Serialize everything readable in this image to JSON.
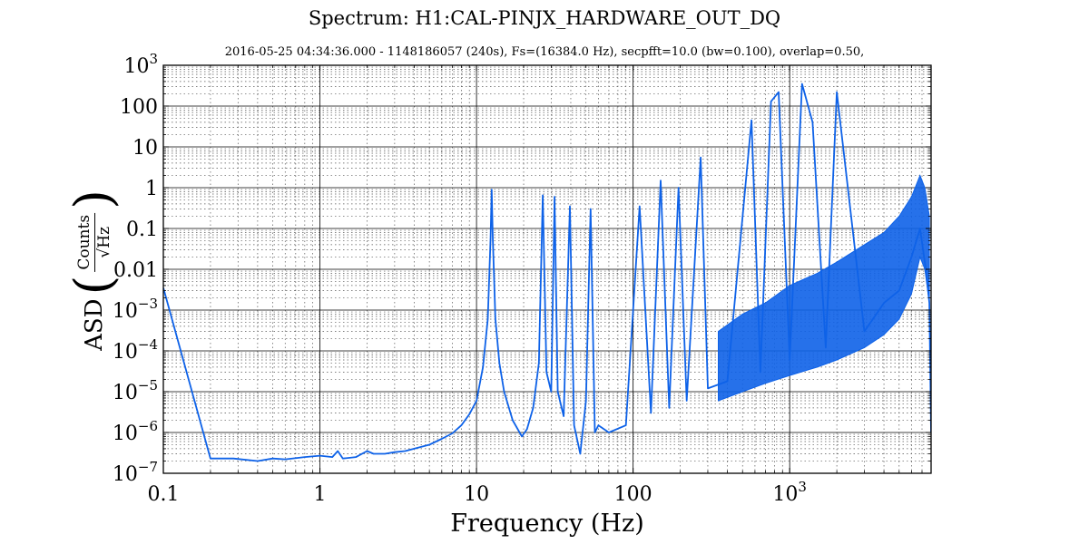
{
  "title": "Spectrum: H1:CAL-PINJX_HARDWARE_OUT_DQ",
  "chart_data": {
    "type": "line",
    "title": "Spectrum: H1:CAL-PINJX_HARDWARE_OUT_DQ",
    "subtitle": "2016-05-25 04:34:36.000 - 1148186057 (240s), Fs=(16384.0 Hz), secpfft=10.0 (bw=0.100), overlap=0.50,",
    "xlabel": "Frequency (Hz)",
    "ylabel": {
      "prefix": "ASD",
      "numerator": "Counts",
      "denominator_root": "√",
      "denominator": "Hz"
    },
    "x_scale": "log",
    "y_scale": "log",
    "xlim": [
      0.1,
      8000
    ],
    "ylim": [
      1e-07,
      1000
    ],
    "x_ticks": [
      {
        "value": 0.1,
        "label": "0.1"
      },
      {
        "value": 1,
        "label": "1"
      },
      {
        "value": 10,
        "label": "10"
      },
      {
        "value": 100,
        "label": "100"
      },
      {
        "value": 1000,
        "base": "10",
        "exp": "3"
      }
    ],
    "y_ticks": [
      {
        "value": 1e-07,
        "base": "10",
        "exp": "−7"
      },
      {
        "value": 1e-06,
        "base": "10",
        "exp": "−6"
      },
      {
        "value": 1e-05,
        "base": "10",
        "exp": "−5"
      },
      {
        "value": 0.0001,
        "base": "10",
        "exp": "−4"
      },
      {
        "value": 0.001,
        "base": "10",
        "exp": "−3"
      },
      {
        "value": 0.01,
        "label": "0.01"
      },
      {
        "value": 0.1,
        "label": "0.1"
      },
      {
        "value": 1,
        "label": "1"
      },
      {
        "value": 10,
        "label": "10"
      },
      {
        "value": 100,
        "label": "100"
      },
      {
        "value": 1000,
        "base": "10",
        "exp": "3"
      }
    ],
    "grid": true,
    "line_color": "#0e62e8",
    "series": [
      {
        "points": [
          [
            0.1,
            0.0035
          ],
          [
            0.2,
            2.3e-07
          ],
          [
            0.28,
            2.3e-07
          ],
          [
            0.4,
            2e-07
          ],
          [
            0.5,
            2.3e-07
          ],
          [
            0.6,
            2.2e-07
          ],
          [
            0.8,
            2.5e-07
          ],
          [
            1.0,
            2.7e-07
          ],
          [
            1.2,
            2.5e-07
          ],
          [
            1.3,
            3.5e-07
          ],
          [
            1.4,
            2.3e-07
          ],
          [
            1.7,
            2.5e-07
          ],
          [
            2.0,
            3.5e-07
          ],
          [
            2.2,
            3e-07
          ],
          [
            2.6,
            3e-07
          ],
          [
            3.0,
            3.3e-07
          ],
          [
            3.5,
            3.5e-07
          ],
          [
            4.0,
            4e-07
          ],
          [
            5.0,
            5e-07
          ],
          [
            6.0,
            7e-07
          ],
          [
            7.0,
            9.5e-07
          ],
          [
            8.0,
            1.5e-06
          ],
          [
            9.0,
            2.8e-06
          ],
          [
            10.0,
            6e-06
          ],
          [
            11.0,
            4e-05
          ],
          [
            11.8,
            0.0006
          ],
          [
            12.3,
            0.06
          ],
          [
            12.5,
            0.9
          ],
          [
            12.7,
            0.06
          ],
          [
            13.2,
            0.0006
          ],
          [
            14.0,
            5e-05
          ],
          [
            15.0,
            1e-05
          ],
          [
            17.0,
            2e-06
          ],
          [
            19.5,
            8e-07
          ],
          [
            21.0,
            1.2e-06
          ],
          [
            23.0,
            4e-06
          ],
          [
            25.0,
            5e-05
          ],
          [
            26.5,
            0.65
          ],
          [
            28.0,
            3e-05
          ],
          [
            30.0,
            1e-05
          ],
          [
            31.5,
            0.6
          ],
          [
            33.0,
            1e-05
          ],
          [
            36.0,
            2.5e-06
          ],
          [
            39.5,
            0.35
          ],
          [
            42.0,
            1.5e-06
          ],
          [
            46.0,
            3e-07
          ],
          [
            50.0,
            6e-06
          ],
          [
            53.5,
            0.3
          ],
          [
            57.0,
            1e-06
          ],
          [
            60.0,
            1.5e-06
          ],
          [
            70.0,
            1e-06
          ],
          [
            90.0,
            1.5e-06
          ],
          [
            110.0,
            0.35
          ],
          [
            130.0,
            3e-06
          ],
          [
            150.0,
            1.5
          ],
          [
            170.0,
            4e-06
          ],
          [
            195.0,
            1.0
          ],
          [
            220.0,
            6e-06
          ],
          [
            270.0,
            5.5
          ],
          [
            300.0,
            1.2e-05
          ],
          [
            400.0,
            1.8e-05
          ],
          [
            570.0,
            45.0
          ],
          [
            650.0,
            3e-05
          ],
          [
            760.0,
            130.0
          ],
          [
            850.0,
            220.0
          ],
          [
            1000.0,
            6e-05
          ],
          [
            1200.0,
            350.0
          ],
          [
            1400.0,
            40.0
          ],
          [
            1700.0,
            0.00012
          ],
          [
            2000.0,
            220.0
          ],
          [
            3000.0,
            0.0003
          ],
          [
            4000.0,
            0.0015
          ],
          [
            5000.0,
            0.003
          ],
          [
            6000.0,
            0.02
          ],
          [
            6800.0,
            0.1
          ],
          [
            7400.0,
            0.01
          ],
          [
            7800.0,
            0.0015
          ],
          [
            8000.0,
            1e-06
          ]
        ]
      }
    ],
    "noise_band": [
      [
        350,
        6e-06,
        0.0003
      ],
      [
        500,
        1e-05,
        0.0008
      ],
      [
        700,
        1.6e-05,
        0.0015
      ],
      [
        1000,
        2.5e-05,
        0.004
      ],
      [
        1500,
        4e-05,
        0.008
      ],
      [
        2000,
        6e-05,
        0.015
      ],
      [
        3000,
        0.00012,
        0.04
      ],
      [
        4000,
        0.00025,
        0.08
      ],
      [
        5000,
        0.0006,
        0.2
      ],
      [
        6000,
        0.0025,
        0.6
      ],
      [
        6800,
        0.02,
        2.0
      ],
      [
        7300,
        0.01,
        1.0
      ],
      [
        7800,
        0.0015,
        0.2
      ]
    ]
  }
}
